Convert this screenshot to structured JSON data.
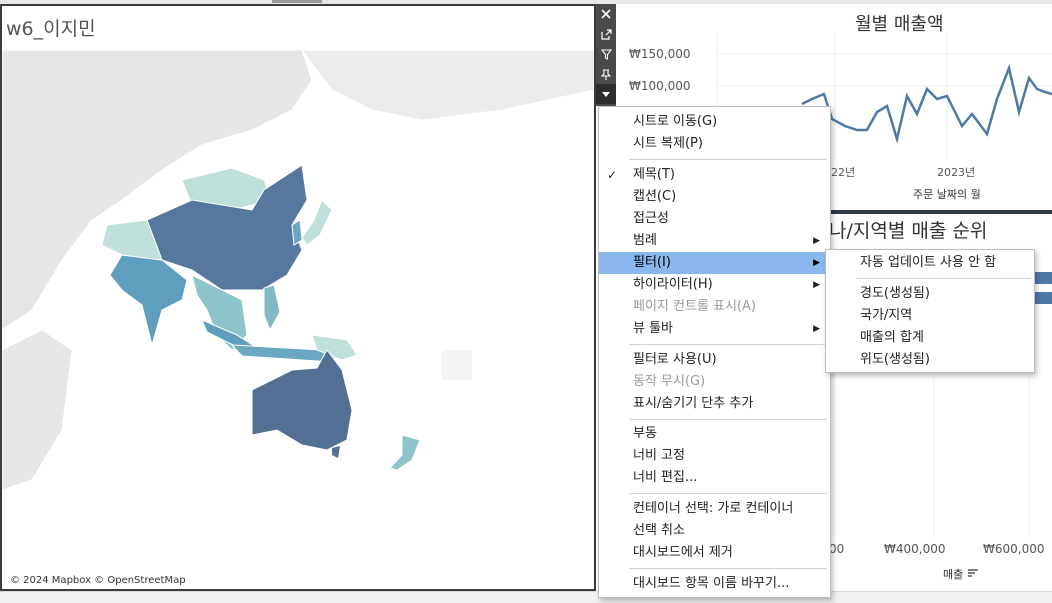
{
  "dashboard": {
    "map_title": "w6_이지민",
    "map_attribution": "© 2024 Mapbox © OpenStreetMap"
  },
  "line_chart_panel": {
    "title": "월별 매출액",
    "y_ticks": [
      "₩150,000",
      "₩100,000"
    ],
    "x_ticks": [
      "22년",
      "2023년"
    ],
    "x_title": "주문 날짜의 월"
  },
  "bar_chart_panel": {
    "title": "나/지역별 매출 순위",
    "x_ticks": [
      "00",
      "₩400,000",
      "₩600,000"
    ],
    "x_title": "매출"
  },
  "context_menu": {
    "items": [
      {
        "label": "시트로 이동(G)"
      },
      {
        "label": "시트 복제(P)"
      },
      {
        "label": "제목(T)",
        "checked": true
      },
      {
        "label": "캡션(C)"
      },
      {
        "label": "접근성"
      },
      {
        "label": "범례",
        "submenu": true
      },
      {
        "label": "필터(I)",
        "submenu": true,
        "active": true
      },
      {
        "label": "하이라이터(H)",
        "submenu": true
      },
      {
        "label": "페이지 컨트롤 표시(A)",
        "disabled": true
      },
      {
        "label": "뷰 툴바",
        "submenu": true
      },
      {
        "label": "필터로 사용(U)"
      },
      {
        "label": "동작 무시(G)",
        "disabled": true
      },
      {
        "label": "표시/숨기기 단추 추가"
      },
      {
        "label": "부동"
      },
      {
        "label": "너비 고정"
      },
      {
        "label": "너비 편집..."
      },
      {
        "label": "컨테이너 선택: 가로 컨테이너"
      },
      {
        "label": "선택 취소"
      },
      {
        "label": "대시보드에서 제거"
      },
      {
        "label": "대시보드 항목 이름 바꾸기..."
      }
    ]
  },
  "filter_submenu": {
    "items": [
      {
        "label": "자동 업데이트 사용 안 함"
      },
      {
        "label": "경도(생성됨)"
      },
      {
        "label": "국가/지역"
      },
      {
        "label": "매출의 합계"
      },
      {
        "label": "위도(생성됨)"
      }
    ]
  },
  "colors": {
    "map_dark": "#4e6f96",
    "map_mid": "#5e9fbf",
    "map_light": "#bfe0da",
    "line": "#4e79a7",
    "menu_highlight": "#8ab8ee"
  },
  "icons": [
    "close-icon",
    "popout-icon",
    "filter-icon",
    "pin-icon",
    "more-options-icon"
  ]
}
